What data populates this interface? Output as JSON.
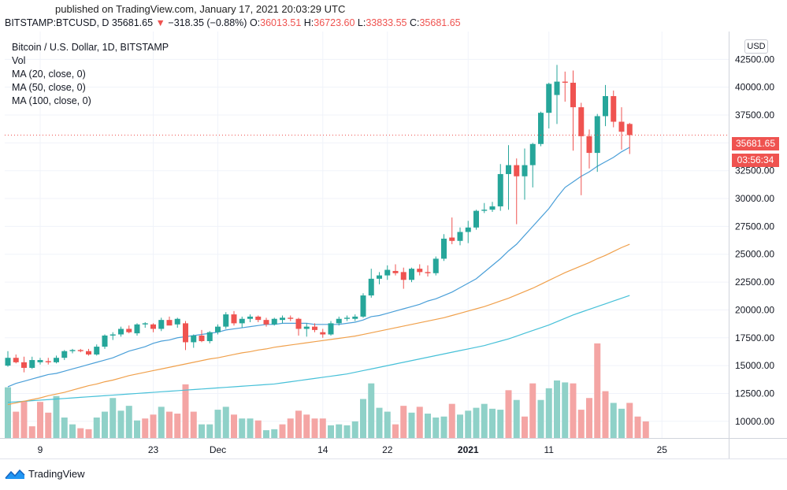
{
  "header": {
    "published": "published on TradingView.com, January 17, 2021 20:03:29 UTC",
    "symbol": "BITSTAMP:BTCUSD, D",
    "last": "35681.65",
    "change": "−318.35 (−0.88%)",
    "open_label": "O:",
    "open": "36013.51",
    "high_label": "H:",
    "high": "36723.60",
    "low_label": "L:",
    "low": "33833.55",
    "close_label": "C:",
    "close": "35681.65"
  },
  "legend": {
    "title": "Bitcoin / U.S. Dollar, 1D, BITSTAMP",
    "vol": "Vol",
    "ma20": "MA (20, close, 0)",
    "ma50": "MA (50, close, 0)",
    "ma100": "MA (100, close, 0)"
  },
  "currency_button": "USD",
  "price_badge": "35681.65",
  "countdown_badge": "03:56:34",
  "footer_logo": "TradingView",
  "colors": {
    "up": "#26a69a",
    "down": "#ef5350",
    "up_vol": "#8fd1c8",
    "down_vol": "#f4a5a4",
    "ma20": "#4a9fd8",
    "ma50": "#f0a04b",
    "ma100": "#46c0d8"
  },
  "chart_data": {
    "type": "candlestick",
    "title": "Bitcoin / U.S. Dollar, 1D, BITSTAMP",
    "y_ticks": [
      "42500.00",
      "40000.00",
      "37500.00",
      "35000.00",
      "32500.00",
      "30000.00",
      "27500.00",
      "25000.00",
      "22500.00",
      "20000.00",
      "17500.00",
      "15000.00",
      "12500.00",
      "10000.00"
    ],
    "x_ticks": [
      {
        "label": "9",
        "index": 4
      },
      {
        "label": "23",
        "index": 18
      },
      {
        "label": "Dec",
        "index": 26
      },
      {
        "label": "14",
        "index": 39
      },
      {
        "label": "22",
        "index": 47
      },
      {
        "label": "2021",
        "index": 57
      },
      {
        "label": "11",
        "index": 67
      },
      {
        "label": "25",
        "index": 81
      }
    ],
    "ylim": [
      8500,
      45000
    ],
    "candles": [
      {
        "o": 15000,
        "h": 16300,
        "l": 14900,
        "c": 15700
      },
      {
        "o": 15700,
        "h": 16000,
        "l": 15200,
        "c": 15300
      },
      {
        "o": 15300,
        "h": 15800,
        "l": 14400,
        "c": 14800
      },
      {
        "o": 14800,
        "h": 15800,
        "l": 14700,
        "c": 15500
      },
      {
        "o": 15300,
        "h": 15700,
        "l": 15100,
        "c": 15500
      },
      {
        "o": 15400,
        "h": 15700,
        "l": 15100,
        "c": 15300
      },
      {
        "o": 15300,
        "h": 15900,
        "l": 15200,
        "c": 15700
      },
      {
        "o": 15700,
        "h": 16400,
        "l": 15500,
        "c": 16300
      },
      {
        "o": 16300,
        "h": 16500,
        "l": 16100,
        "c": 16400
      },
      {
        "o": 16400,
        "h": 16500,
        "l": 16200,
        "c": 16300
      },
      {
        "o": 16300,
        "h": 16500,
        "l": 15900,
        "c": 16000
      },
      {
        "o": 16000,
        "h": 16900,
        "l": 15900,
        "c": 16700
      },
      {
        "o": 16700,
        "h": 17800,
        "l": 16500,
        "c": 17700
      },
      {
        "o": 17700,
        "h": 18000,
        "l": 17300,
        "c": 17800
      },
      {
        "o": 17800,
        "h": 18500,
        "l": 17600,
        "c": 18300
      },
      {
        "o": 18300,
        "h": 18600,
        "l": 17900,
        "c": 18000
      },
      {
        "o": 17900,
        "h": 18800,
        "l": 17700,
        "c": 18700
      },
      {
        "o": 18700,
        "h": 18900,
        "l": 18400,
        "c": 18800
      },
      {
        "o": 18700,
        "h": 18800,
        "l": 18000,
        "c": 18300
      },
      {
        "o": 18300,
        "h": 19300,
        "l": 18100,
        "c": 19100
      },
      {
        "o": 19100,
        "h": 19400,
        "l": 18700,
        "c": 18600
      },
      {
        "o": 18700,
        "h": 19300,
        "l": 18400,
        "c": 19200
      },
      {
        "o": 18800,
        "h": 19000,
        "l": 16400,
        "c": 17100
      },
      {
        "o": 17100,
        "h": 17800,
        "l": 16600,
        "c": 17700
      },
      {
        "o": 17700,
        "h": 18200,
        "l": 17100,
        "c": 17200
      },
      {
        "o": 17200,
        "h": 18100,
        "l": 17000,
        "c": 18000
      },
      {
        "o": 18000,
        "h": 18700,
        "l": 17800,
        "c": 18500
      },
      {
        "o": 18500,
        "h": 19800,
        "l": 18300,
        "c": 19600
      },
      {
        "o": 19600,
        "h": 19900,
        "l": 18600,
        "c": 18800
      },
      {
        "o": 18800,
        "h": 19400,
        "l": 18400,
        "c": 19200
      },
      {
        "o": 19200,
        "h": 19600,
        "l": 18900,
        "c": 19400
      },
      {
        "o": 19400,
        "h": 19500,
        "l": 18900,
        "c": 19100
      },
      {
        "o": 19100,
        "h": 19300,
        "l": 18500,
        "c": 18700
      },
      {
        "o": 18700,
        "h": 19300,
        "l": 18600,
        "c": 19200
      },
      {
        "o": 19100,
        "h": 19500,
        "l": 18800,
        "c": 19300
      },
      {
        "o": 19300,
        "h": 19500,
        "l": 19000,
        "c": 19200
      },
      {
        "o": 19200,
        "h": 19300,
        "l": 17700,
        "c": 18300
      },
      {
        "o": 18300,
        "h": 18800,
        "l": 17600,
        "c": 18500
      },
      {
        "o": 18500,
        "h": 18800,
        "l": 18000,
        "c": 18200
      },
      {
        "o": 18000,
        "h": 18300,
        "l": 17500,
        "c": 17800
      },
      {
        "o": 17800,
        "h": 19000,
        "l": 17700,
        "c": 18800
      },
      {
        "o": 18800,
        "h": 19400,
        "l": 18600,
        "c": 19200
      },
      {
        "o": 19200,
        "h": 19500,
        "l": 19000,
        "c": 19300
      },
      {
        "o": 19200,
        "h": 19600,
        "l": 19000,
        "c": 19400
      },
      {
        "o": 19400,
        "h": 21500,
        "l": 19300,
        "c": 21300
      },
      {
        "o": 21300,
        "h": 23700,
        "l": 21100,
        "c": 22800
      },
      {
        "o": 22800,
        "h": 23400,
        "l": 22300,
        "c": 23100
      },
      {
        "o": 23100,
        "h": 24000,
        "l": 22700,
        "c": 23600
      },
      {
        "o": 23500,
        "h": 24100,
        "l": 23100,
        "c": 23300
      },
      {
        "o": 23400,
        "h": 23800,
        "l": 21900,
        "c": 22700
      },
      {
        "o": 22700,
        "h": 23800,
        "l": 22500,
        "c": 23700
      },
      {
        "o": 23700,
        "h": 24100,
        "l": 23100,
        "c": 23400
      },
      {
        "o": 23400,
        "h": 24000,
        "l": 23000,
        "c": 23300
      },
      {
        "o": 23300,
        "h": 24800,
        "l": 23100,
        "c": 24600
      },
      {
        "o": 24600,
        "h": 26800,
        "l": 24400,
        "c": 26400
      },
      {
        "o": 26500,
        "h": 28300,
        "l": 25900,
        "c": 26200
      },
      {
        "o": 26200,
        "h": 27400,
        "l": 25800,
        "c": 27000
      },
      {
        "o": 27000,
        "h": 28000,
        "l": 26000,
        "c": 27400
      },
      {
        "o": 27400,
        "h": 29000,
        "l": 27200,
        "c": 28900
      },
      {
        "o": 28900,
        "h": 29600,
        "l": 28700,
        "c": 29000
      },
      {
        "o": 29000,
        "h": 29700,
        "l": 28800,
        "c": 29300
      },
      {
        "o": 29300,
        "h": 33100,
        "l": 28900,
        "c": 32200
      },
      {
        "o": 32200,
        "h": 34800,
        "l": 29000,
        "c": 33000
      },
      {
        "o": 33000,
        "h": 33600,
        "l": 27700,
        "c": 32000
      },
      {
        "o": 32000,
        "h": 34500,
        "l": 29900,
        "c": 33000
      },
      {
        "o": 33000,
        "h": 35000,
        "l": 31000,
        "c": 34900
      },
      {
        "o": 34900,
        "h": 37800,
        "l": 34700,
        "c": 37700
      },
      {
        "o": 37700,
        "h": 40400,
        "l": 36300,
        "c": 40300
      },
      {
        "o": 39300,
        "h": 42000,
        "l": 36700,
        "c": 40500
      },
      {
        "o": 40500,
        "h": 41400,
        "l": 38700,
        "c": 40400
      },
      {
        "o": 40400,
        "h": 41500,
        "l": 34300,
        "c": 38200
      },
      {
        "o": 38200,
        "h": 38600,
        "l": 30300,
        "c": 35600
      },
      {
        "o": 35600,
        "h": 36200,
        "l": 32700,
        "c": 34100
      },
      {
        "o": 34100,
        "h": 37600,
        "l": 32400,
        "c": 37400
      },
      {
        "o": 37400,
        "h": 40200,
        "l": 36500,
        "c": 39200
      },
      {
        "o": 39200,
        "h": 39700,
        "l": 36400,
        "c": 36900
      },
      {
        "o": 36900,
        "h": 38200,
        "l": 34400,
        "c": 36000
      },
      {
        "o": 36700,
        "h": 36800,
        "l": 34000,
        "c": 35700
      }
    ],
    "volume": [
      {
        "v": 13200,
        "up": true
      },
      {
        "v": 10700,
        "up": false
      },
      {
        "v": 11800,
        "up": false
      },
      {
        "v": 9200,
        "up": false
      },
      {
        "v": 11700,
        "up": false
      },
      {
        "v": 10600,
        "up": false
      },
      {
        "v": 12300,
        "up": true
      },
      {
        "v": 10100,
        "up": true
      },
      {
        "v": 9400,
        "up": true
      },
      {
        "v": 9000,
        "up": false
      },
      {
        "v": 8900,
        "up": false
      },
      {
        "v": 10100,
        "up": true
      },
      {
        "v": 10700,
        "up": true
      },
      {
        "v": 12100,
        "up": true
      },
      {
        "v": 10800,
        "up": true
      },
      {
        "v": 11300,
        "up": true
      },
      {
        "v": 9800,
        "up": true
      },
      {
        "v": 10000,
        "up": false
      },
      {
        "v": 10400,
        "up": false
      },
      {
        "v": 11200,
        "up": true
      },
      {
        "v": 10700,
        "up": false
      },
      {
        "v": 10500,
        "up": false
      },
      {
        "v": 13500,
        "up": false
      },
      {
        "v": 10700,
        "up": false
      },
      {
        "v": 9400,
        "up": true
      },
      {
        "v": 9400,
        "up": true
      },
      {
        "v": 10900,
        "up": true
      },
      {
        "v": 11200,
        "up": true
      },
      {
        "v": 10400,
        "up": false
      },
      {
        "v": 10000,
        "up": true
      },
      {
        "v": 10000,
        "up": true
      },
      {
        "v": 9800,
        "up": false
      },
      {
        "v": 8800,
        "up": true
      },
      {
        "v": 8900,
        "up": true
      },
      {
        "v": 9400,
        "up": false
      },
      {
        "v": 10000,
        "up": false
      },
      {
        "v": 10800,
        "up": false
      },
      {
        "v": 10400,
        "up": false
      },
      {
        "v": 10000,
        "up": false
      },
      {
        "v": 10000,
        "up": false
      },
      {
        "v": 9300,
        "up": true
      },
      {
        "v": 9400,
        "up": true
      },
      {
        "v": 9300,
        "up": true
      },
      {
        "v": 9700,
        "up": true
      },
      {
        "v": 12000,
        "up": true
      },
      {
        "v": 13600,
        "up": true
      },
      {
        "v": 11100,
        "up": true
      },
      {
        "v": 10700,
        "up": true
      },
      {
        "v": 9400,
        "up": false
      },
      {
        "v": 11300,
        "up": false
      },
      {
        "v": 10600,
        "up": true
      },
      {
        "v": 11200,
        "up": false
      },
      {
        "v": 10500,
        "up": true
      },
      {
        "v": 10100,
        "up": true
      },
      {
        "v": 10200,
        "up": true
      },
      {
        "v": 11500,
        "up": false
      },
      {
        "v": 10400,
        "up": true
      },
      {
        "v": 10800,
        "up": true
      },
      {
        "v": 11100,
        "up": true
      },
      {
        "v": 11500,
        "up": true
      },
      {
        "v": 11000,
        "up": true
      },
      {
        "v": 10900,
        "up": true
      },
      {
        "v": 12900,
        "up": false
      },
      {
        "v": 11900,
        "up": true
      },
      {
        "v": 10200,
        "up": false
      },
      {
        "v": 13600,
        "up": false
      },
      {
        "v": 11900,
        "up": true
      },
      {
        "v": 13100,
        "up": true
      },
      {
        "v": 13900,
        "up": true
      },
      {
        "v": 13700,
        "up": true
      },
      {
        "v": 13600,
        "up": false
      },
      {
        "v": 10900,
        "up": false
      },
      {
        "v": 12100,
        "up": false
      },
      {
        "v": 17700,
        "up": false
      },
      {
        "v": 12800,
        "up": false
      },
      {
        "v": 11600,
        "up": true
      },
      {
        "v": 11000,
        "up": true
      },
      {
        "v": 11600,
        "up": false
      },
      {
        "v": 10200,
        "up": false
      },
      {
        "v": 9700,
        "up": false
      }
    ],
    "ma20": [
      13100,
      13400,
      13600,
      13800,
      14000,
      14200,
      14300,
      14500,
      14700,
      14900,
      15100,
      15300,
      15500,
      15700,
      16000,
      16300,
      16500,
      16700,
      17000,
      17200,
      17300,
      17500,
      17600,
      17700,
      17800,
      17900,
      18000,
      18200,
      18300,
      18400,
      18500,
      18600,
      18700,
      18700,
      18800,
      18800,
      18800,
      18800,
      18700,
      18700,
      18700,
      18700,
      18800,
      18900,
      19100,
      19400,
      19500,
      19700,
      19900,
      20100,
      20300,
      20500,
      20800,
      21000,
      21300,
      21600,
      22000,
      22400,
      22800,
      23400,
      24000,
      24600,
      25300,
      25900,
      26700,
      27500,
      28300,
      29100,
      30100,
      31000,
      31500,
      32000,
      32400,
      32900,
      33300,
      33700,
      34200,
      34600
    ],
    "ma50": [
      11500,
      11650,
      11800,
      11950,
      12100,
      12300,
      12450,
      12600,
      12800,
      13000,
      13200,
      13350,
      13550,
      13700,
      13900,
      14100,
      14250,
      14400,
      14550,
      14700,
      14850,
      15000,
      15150,
      15300,
      15450,
      15600,
      15700,
      15850,
      16000,
      16150,
      16250,
      16400,
      16500,
      16650,
      16750,
      16850,
      16950,
      17050,
      17150,
      17250,
      17350,
      17450,
      17550,
      17650,
      17800,
      17950,
      18100,
      18250,
      18400,
      18550,
      18700,
      18850,
      19000,
      19150,
      19300,
      19500,
      19700,
      19900,
      20100,
      20300,
      20550,
      20800,
      21050,
      21350,
      21650,
      21950,
      22300,
      22650,
      23000,
      23350,
      23650,
      23950,
      24250,
      24600,
      24900,
      25250,
      25600,
      25900
    ],
    "ma100": [
      11700,
      11750,
      11800,
      11850,
      11900,
      11950,
      12000,
      12050,
      12100,
      12150,
      12200,
      12250,
      12300,
      12350,
      12400,
      12450,
      12500,
      12550,
      12600,
      12650,
      12700,
      12750,
      12800,
      12850,
      12900,
      12950,
      13000,
      13050,
      13100,
      13150,
      13200,
      13250,
      13300,
      13350,
      13450,
      13550,
      13650,
      13750,
      13850,
      13950,
      14050,
      14150,
      14250,
      14400,
      14550,
      14700,
      14850,
      15000,
      15150,
      15300,
      15450,
      15600,
      15750,
      15900,
      16050,
      16200,
      16350,
      16500,
      16650,
      16800,
      17000,
      17200,
      17400,
      17650,
      17900,
      18150,
      18400,
      18650,
      18950,
      19250,
      19550,
      19800,
      20050,
      20300,
      20550,
      20800,
      21050,
      21300
    ]
  }
}
